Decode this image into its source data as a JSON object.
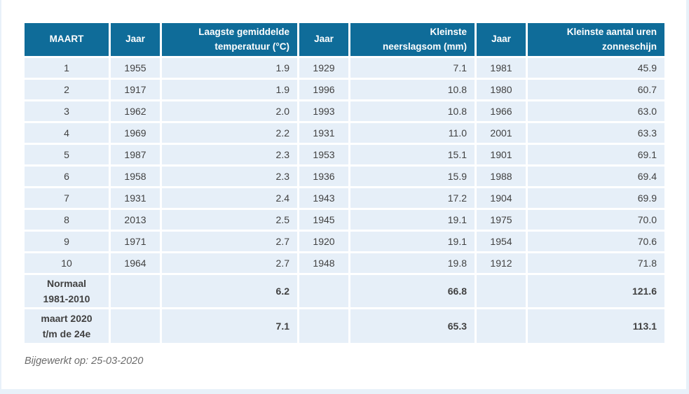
{
  "colors": {
    "header_bg": "#0f6c99",
    "header_text": "#ffffff",
    "cell_bg": "#e6eff8",
    "cell_text": "#414141",
    "page_edge": "#e8f1f9",
    "footer_text": "#6b6b6b"
  },
  "table": {
    "headers": [
      [
        "MAART"
      ],
      [
        "Jaar"
      ],
      [
        "Laagste gemiddelde",
        "temperatuur (°C)"
      ],
      [
        "Jaar"
      ],
      [
        "Kleinste",
        "neerslagsom (mm)"
      ],
      [
        "Jaar"
      ],
      [
        "Kleinste aantal uren",
        "zonneschijn"
      ]
    ],
    "rows": [
      [
        "1",
        "1955",
        "1.9",
        "1929",
        "7.1",
        "1981",
        "45.9"
      ],
      [
        "2",
        "1917",
        "1.9",
        "1996",
        "10.8",
        "1980",
        "60.7"
      ],
      [
        "3",
        "1962",
        "2.0",
        "1993",
        "10.8",
        "1966",
        "63.0"
      ],
      [
        "4",
        "1969",
        "2.2",
        "1931",
        "11.0",
        "2001",
        "63.3"
      ],
      [
        "5",
        "1987",
        "2.3",
        "1953",
        "15.1",
        "1901",
        "69.1"
      ],
      [
        "6",
        "1958",
        "2.3",
        "1936",
        "15.9",
        "1988",
        "69.4"
      ],
      [
        "7",
        "1931",
        "2.4",
        "1943",
        "17.2",
        "1904",
        "69.9"
      ],
      [
        "8",
        "2013",
        "2.5",
        "1945",
        "19.1",
        "1975",
        "70.0"
      ],
      [
        "9",
        "1971",
        "2.7",
        "1920",
        "19.1",
        "1954",
        "70.6"
      ],
      [
        "10",
        "1964",
        "2.7",
        "1948",
        "19.8",
        "1912",
        "71.8"
      ]
    ],
    "summary_rows": [
      {
        "label": [
          "Normaal",
          "1981-2010"
        ],
        "values": [
          "",
          "6.2",
          "",
          "66.8",
          "",
          "121.6"
        ]
      },
      {
        "label": [
          "maart 2020",
          "t/m de 24e"
        ],
        "values": [
          "",
          "7.1",
          "",
          "65.3",
          "",
          "113.1"
        ]
      }
    ]
  },
  "footer": {
    "updated": "Bijgewerkt op: 25-03-2020"
  },
  "chart_data": {
    "type": "table",
    "columns": [
      "MAART",
      "Jaar",
      "Laagste gemiddelde temperatuur (°C)",
      "Jaar",
      "Kleinste neerslagsom (mm)",
      "Jaar",
      "Kleinste aantal uren zonneschijn"
    ],
    "rows": [
      [
        1,
        1955,
        1.9,
        1929,
        7.1,
        1981,
        45.9
      ],
      [
        2,
        1917,
        1.9,
        1996,
        10.8,
        1980,
        60.7
      ],
      [
        3,
        1962,
        2.0,
        1993,
        10.8,
        1966,
        63.0
      ],
      [
        4,
        1969,
        2.2,
        1931,
        11.0,
        2001,
        63.3
      ],
      [
        5,
        1987,
        2.3,
        1953,
        15.1,
        1901,
        69.1
      ],
      [
        6,
        1958,
        2.3,
        1936,
        15.9,
        1988,
        69.4
      ],
      [
        7,
        1931,
        2.4,
        1943,
        17.2,
        1904,
        69.9
      ],
      [
        8,
        2013,
        2.5,
        1945,
        19.1,
        1975,
        70.0
      ],
      [
        9,
        1971,
        2.7,
        1920,
        19.1,
        1954,
        70.6
      ],
      [
        10,
        1964,
        2.7,
        1948,
        19.8,
        1912,
        71.8
      ]
    ],
    "summary_rows": [
      {
        "label": "Normaal 1981-2010",
        "temperature": 6.2,
        "precipitation": 66.8,
        "sunshine_hours": 121.6
      },
      {
        "label": "maart 2020 t/m de 24e",
        "temperature": 7.1,
        "precipitation": 65.3,
        "sunshine_hours": 113.1
      }
    ],
    "footnote": "Bijgewerkt op: 25-03-2020"
  }
}
